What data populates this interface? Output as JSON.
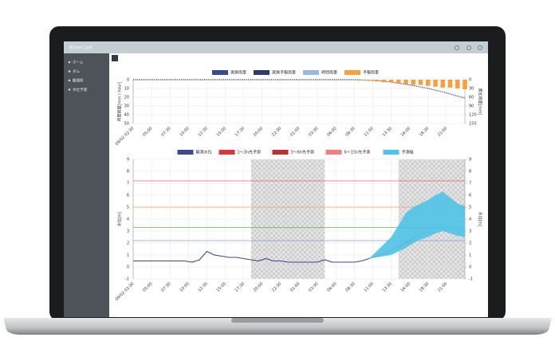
{
  "header": {
    "title": "RiverCast"
  },
  "sidebar": {
    "items": [
      "ホーム",
      "ダム",
      "観測所",
      "水位予測"
    ]
  },
  "chart_data": [
    {
      "type": "bar",
      "xlim": [
        0,
        45
      ],
      "xticks": [
        {
          "value": 0,
          "label": "09/02 02:30"
        },
        {
          "value": 2.5,
          "label": "05:00"
        },
        {
          "value": 5,
          "label": "07:30"
        },
        {
          "value": 7.5,
          "label": "10:00"
        },
        {
          "value": 10,
          "label": "12:30"
        },
        {
          "value": 12.5,
          "label": "15:00"
        },
        {
          "value": 15,
          "label": "17:30"
        },
        {
          "value": 17.5,
          "label": "20:00"
        },
        {
          "value": 20,
          "label": "22:30"
        },
        {
          "value": 22.5,
          "label": "01:00"
        },
        {
          "value": 25,
          "label": "03:30"
        },
        {
          "value": 27.5,
          "label": "06:00"
        },
        {
          "value": 30,
          "label": "08:30"
        },
        {
          "value": 32.5,
          "label": "11:00"
        },
        {
          "value": 35,
          "label": "13:30"
        },
        {
          "value": 37.5,
          "label": "16:00"
        },
        {
          "value": 40,
          "label": "18:30"
        },
        {
          "value": 42.5,
          "label": "21:00"
        }
      ],
      "ylim": [
        0,
        50
      ],
      "yticks": [
        0,
        10,
        20,
        30,
        40,
        50
      ],
      "y_inverted": true,
      "y2lim": [
        0,
        150
      ],
      "y2ticks": [
        0,
        30,
        60,
        90,
        120,
        150
      ],
      "ylabel": "時間雨量[mm / hour]",
      "y2label": "累加雨量[mm]",
      "grid": true,
      "legend": "top",
      "series": [
        {
          "name": "実績雨量",
          "color": "#3b4a8a",
          "kind": "bar",
          "x": [],
          "values": []
        },
        {
          "name": "実績予報雨量",
          "color": "#2c3a70",
          "kind": "dotted-line",
          "axis": "y2",
          "x": [
            0,
            10,
            20,
            30,
            32,
            34,
            36,
            38,
            40,
            42,
            44,
            45
          ],
          "values": [
            0,
            0,
            0,
            0,
            2,
            5,
            12,
            20,
            30,
            42,
            56,
            63
          ]
        },
        {
          "name": "時間雨量",
          "color": "#9ab7de",
          "kind": "bar",
          "x": [],
          "values": []
        },
        {
          "name": "予報雨量",
          "color": "#f5a142",
          "kind": "bar",
          "x": [
            31,
            32,
            33,
            34,
            35,
            36,
            37,
            38,
            39,
            40,
            41,
            42,
            43,
            44,
            45
          ],
          "values": [
            1,
            1,
            2,
            3,
            3,
            4,
            5,
            6,
            6,
            7,
            8,
            9,
            9,
            10,
            11
          ]
        }
      ]
    },
    {
      "type": "line",
      "xlim": [
        0,
        45
      ],
      "xticks": [
        {
          "value": 0,
          "label": "09/02 02:30"
        },
        {
          "value": 2.5,
          "label": "05:00"
        },
        {
          "value": 5,
          "label": "07:30"
        },
        {
          "value": 7.5,
          "label": "10:00"
        },
        {
          "value": 10,
          "label": "12:30"
        },
        {
          "value": 12.5,
          "label": "15:00"
        },
        {
          "value": 15,
          "label": "17:30"
        },
        {
          "value": 17.5,
          "label": "20:00"
        },
        {
          "value": 20,
          "label": "22:30"
        },
        {
          "value": 22.5,
          "label": "01:00"
        },
        {
          "value": 25,
          "label": "03:30"
        },
        {
          "value": 27.5,
          "label": "06:00"
        },
        {
          "value": 30,
          "label": "08:30"
        },
        {
          "value": 32.5,
          "label": "11:00"
        },
        {
          "value": 35,
          "label": "13:30"
        },
        {
          "value": 37.5,
          "label": "16:00"
        },
        {
          "value": 40,
          "label": "18:30"
        },
        {
          "value": 42.5,
          "label": "21:00"
        }
      ],
      "ylim": [
        -1,
        9
      ],
      "yticks": [
        -1,
        0,
        1,
        2,
        3,
        4,
        5,
        6,
        7,
        8,
        9
      ],
      "y2lim": [
        -1,
        9
      ],
      "y2ticks": [
        -1,
        0,
        1,
        2,
        3,
        4,
        5,
        6,
        7,
        8,
        9
      ],
      "ylabel": "水位[m]",
      "y2label": "水位[m]",
      "grid": true,
      "legend": "top",
      "shaded": [
        [
          16,
          26
        ],
        [
          36,
          45
        ]
      ],
      "thresholds": [
        {
          "value": 7.2,
          "color": "#e06666"
        },
        {
          "value": 5,
          "color": "#f0a050"
        },
        {
          "value": 3.3,
          "color": "#5cb85c"
        },
        {
          "value": 2.2,
          "color": "#7aa6d6"
        }
      ],
      "series": [
        {
          "name": "観測水位",
          "color": "#3b4a8a",
          "kind": "line",
          "x": [
            0,
            1,
            2,
            3,
            4,
            5,
            6,
            7,
            8,
            9,
            10,
            11,
            12,
            13,
            14,
            15,
            16,
            17,
            18,
            19,
            20,
            21,
            22,
            23,
            24,
            25,
            26,
            27,
            28,
            29,
            30,
            31,
            32
          ],
          "values": [
            0.5,
            0.5,
            0.5,
            0.5,
            0.5,
            0.5,
            0.5,
            0.5,
            0.4,
            0.6,
            1.3,
            1.0,
            0.9,
            0.8,
            0.8,
            0.7,
            0.6,
            0.5,
            0.7,
            0.5,
            0.5,
            0.4,
            0.4,
            0.4,
            0.4,
            0.4,
            0.6,
            0.4,
            0.4,
            0.4,
            0.4,
            0.5,
            0.7
          ]
        },
        {
          "name": "1〜3h先予測",
          "color": "#d63b3b",
          "kind": "line",
          "x": [
            32,
            33,
            34,
            35
          ],
          "values": [
            0.7,
            0.9,
            1.1,
            1.4
          ]
        },
        {
          "name": "3〜6h先予測",
          "color": "#b83232",
          "kind": "line",
          "x": [
            35,
            36,
            37,
            38
          ],
          "values": [
            1.4,
            1.7,
            2.0,
            2.4
          ]
        },
        {
          "name": "6〜15h先予測",
          "color": "#f08080",
          "kind": "line",
          "x": [
            38,
            39,
            40,
            41,
            42,
            43,
            44,
            45
          ],
          "values": [
            2.4,
            2.8,
            3.1,
            3.4,
            3.6,
            3.4,
            3.1,
            3.0
          ]
        },
        {
          "name": "予測幅",
          "color": "#4fc3e8",
          "kind": "band",
          "x": [
            32,
            33,
            34,
            35,
            36,
            37,
            38,
            39,
            40,
            41,
            42,
            43,
            44,
            45
          ],
          "lower": [
            0.7,
            0.8,
            0.9,
            1.0,
            1.3,
            1.6,
            2.0,
            2.3,
            2.5,
            2.8,
            3.0,
            2.8,
            2.6,
            2.5
          ],
          "upper": [
            0.7,
            1.3,
            1.9,
            2.5,
            3.5,
            4.5,
            5.0,
            5.3,
            5.6,
            6.0,
            6.3,
            5.8,
            5.3,
            5.1
          ]
        }
      ]
    }
  ]
}
